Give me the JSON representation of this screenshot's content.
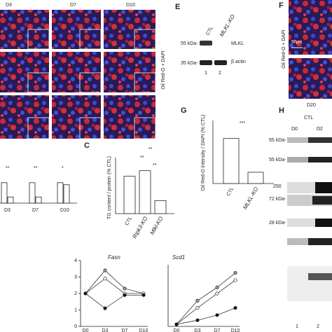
{
  "panels": {
    "top": {
      "columns": [
        "D3",
        "D7",
        "D10"
      ],
      "ylabel": "Oil Red-O + DAPI"
    },
    "e": {
      "letter": "E",
      "lanes": [
        "CTL",
        "MLKL-KO"
      ],
      "markers": [
        "55 kDa-",
        "35 kDa-"
      ],
      "bands": [
        "MLKL",
        "β actin"
      ],
      "lane_numbers": [
        "1",
        "2"
      ]
    },
    "f": {
      "letter": "F",
      "scale": "50µm",
      "ylabel": "Oil Red-O + DAPI",
      "day": "D20"
    },
    "g": {
      "letter": "G",
      "ylabel": "Oil Red-O intensity / DAPI (% CTL)",
      "categories": [
        "CTL",
        "MLKL-KO"
      ],
      "values": [
        100,
        25
      ],
      "ylim": [
        0,
        140
      ],
      "significance": "***"
    },
    "h": {
      "letter": "H",
      "group": "CTL",
      "lanes": [
        "D0",
        "D2"
      ],
      "markers": [
        "55 kDa-",
        "55 kDa-",
        "250",
        "72 kDa-",
        "28 kDa-"
      ],
      "lane_numbers": [
        "1",
        "2"
      ]
    },
    "c": {
      "letter": "C",
      "ylabel": "TG content / protein (% CTL)",
      "categories": [
        "CTL",
        "Ripk3-KO",
        "Mlkl-KO"
      ],
      "values": [
        100,
        115,
        35
      ],
      "ylim": [
        0,
        150
      ],
      "significance": [
        "**",
        "**",
        "**"
      ]
    },
    "b": {
      "categories": [
        "D3",
        "D7",
        "D10"
      ],
      "series": [
        {
          "values": [
            100,
            100,
            100
          ]
        },
        {
          "values": [
            30,
            30,
            90
          ]
        }
      ],
      "ylim": [
        0,
        120
      ],
      "significance": [
        "**",
        "**",
        "*"
      ]
    },
    "fasn": {
      "title": "Fasn",
      "categories": [
        "D0",
        "D3",
        "D7",
        "D10"
      ],
      "ylim": [
        0,
        4
      ],
      "yticks": [
        0,
        1,
        2,
        3,
        4
      ],
      "series": [
        {
          "color": "#999",
          "values": [
            2,
            3.4,
            2.3,
            2
          ]
        },
        {
          "color": "#fff",
          "values": [
            2,
            2.9,
            2,
            2
          ]
        },
        {
          "color": "#111",
          "values": [
            2,
            1.1,
            1.9,
            1.9
          ]
        }
      ]
    },
    "scd1": {
      "title": "Scd1",
      "categories": [
        "D0",
        "D3",
        "D7",
        "D10"
      ],
      "ylim": [
        0,
        6
      ],
      "series": [
        {
          "color": "#999",
          "values": [
            0.2,
            2.5,
            3.8,
            5.2
          ]
        },
        {
          "color": "#fff",
          "values": [
            0.2,
            1.8,
            3.2,
            4.5
          ]
        },
        {
          "color": "#111",
          "values": [
            0.2,
            0.6,
            1.1,
            1.8
          ]
        }
      ]
    }
  }
}
